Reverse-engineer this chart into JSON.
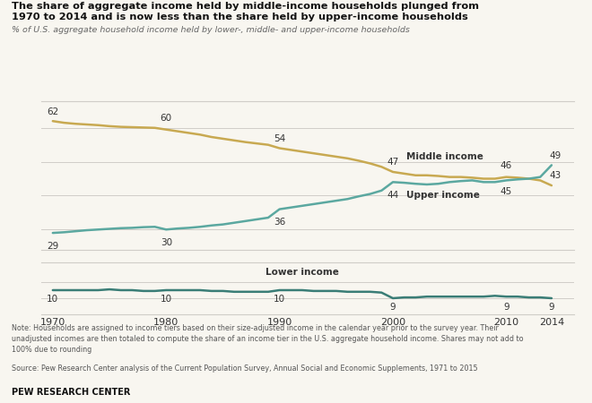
{
  "title_line1": "The share of aggregate income held by middle-income households plunged from",
  "title_line2": "1970 to 2014 and is now less than the share held by upper-income households",
  "subtitle": "% of U.S. aggregate household income held by lower-, middle- and upper-income households",
  "note": "Note: Households are assigned to income tiers based on their size-adjusted income in the calendar year prior to the survey year. Their\nunadjusted incomes are then totaled to compute the share of an income tier in the U.S. aggregate household income. Shares may not add to\n100% due to rounding",
  "source": "Source: Pew Research Center analysis of the Current Population Survey, Annual Social and Economic Supplements, 1971 to 2015",
  "branding": "PEW RESEARCH CENTER",
  "years": [
    1970,
    1971,
    1972,
    1973,
    1974,
    1975,
    1976,
    1977,
    1978,
    1979,
    1980,
    1981,
    1982,
    1983,
    1984,
    1985,
    1986,
    1987,
    1988,
    1989,
    1990,
    1991,
    1992,
    1993,
    1994,
    1995,
    1996,
    1997,
    1998,
    1999,
    2000,
    2001,
    2002,
    2003,
    2004,
    2005,
    2006,
    2007,
    2008,
    2009,
    2010,
    2011,
    2012,
    2013,
    2014
  ],
  "middle_income": [
    62,
    61.5,
    61.2,
    61.0,
    60.8,
    60.5,
    60.3,
    60.2,
    60.1,
    60.0,
    59.5,
    59.0,
    58.5,
    58.0,
    57.3,
    56.8,
    56.3,
    55.8,
    55.4,
    55.0,
    54.0,
    53.5,
    53.0,
    52.5,
    52.0,
    51.5,
    51.0,
    50.3,
    49.5,
    48.5,
    47.0,
    46.5,
    46.0,
    46.0,
    45.8,
    45.5,
    45.5,
    45.3,
    45.0,
    45.0,
    45.5,
    45.3,
    45.0,
    44.5,
    43.0
  ],
  "upper_income": [
    29,
    29.2,
    29.5,
    29.8,
    30.0,
    30.2,
    30.4,
    30.5,
    30.7,
    30.8,
    30.0,
    30.3,
    30.5,
    30.8,
    31.2,
    31.5,
    32.0,
    32.5,
    33.0,
    33.5,
    36.0,
    36.5,
    37.0,
    37.5,
    38.0,
    38.5,
    39.0,
    39.8,
    40.5,
    41.5,
    44.0,
    43.8,
    43.5,
    43.3,
    43.5,
    44.0,
    44.3,
    44.5,
    44.0,
    44.0,
    44.5,
    44.8,
    45.0,
    45.5,
    49.0
  ],
  "lower_income": [
    10,
    10.0,
    10.0,
    10.0,
    10.0,
    10.1,
    10.0,
    10.0,
    9.9,
    9.9,
    10.0,
    10.0,
    10.0,
    10.0,
    9.9,
    9.9,
    9.8,
    9.8,
    9.8,
    9.8,
    10.0,
    10.0,
    10.0,
    9.9,
    9.9,
    9.9,
    9.8,
    9.8,
    9.8,
    9.7,
    9.0,
    9.1,
    9.1,
    9.2,
    9.2,
    9.2,
    9.2,
    9.2,
    9.2,
    9.3,
    9.2,
    9.2,
    9.1,
    9.1,
    9.0
  ],
  "middle_color": "#C8A951",
  "upper_color": "#5BA8A0",
  "lower_color": "#3A7D76",
  "label_middle": {
    "1970": 62,
    "1980": 60,
    "1990": 54,
    "2000": 47,
    "2010": 46,
    "2014": 43
  },
  "label_upper": {
    "1970": 29,
    "1980": 30,
    "1990": 36,
    "2000": 44,
    "2010": 45,
    "2014": 49
  },
  "label_lower": {
    "1970": 10,
    "1980": 10,
    "1990": 10,
    "2000": 9,
    "2010": 9,
    "2014": 9
  },
  "background_color": "#f8f6f0",
  "grid_color": "#d0cdc8"
}
